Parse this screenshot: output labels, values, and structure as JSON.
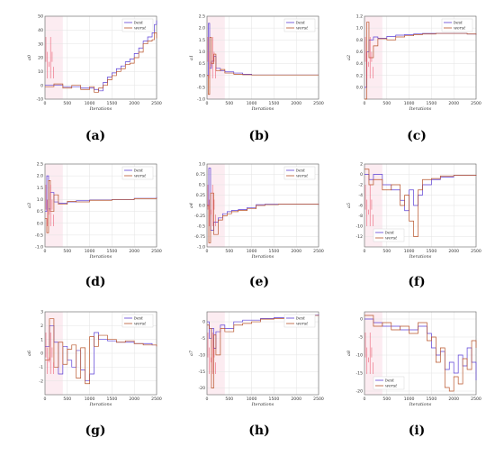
{
  "figure": {
    "panel_labels": [
      "(a)",
      "(b)",
      "(c)",
      "(d)",
      "(e)",
      "(f)",
      "(g)",
      "(h)",
      "(i)"
    ]
  },
  "colors": {
    "best": "#5b3fd6",
    "worst": "#b8542a",
    "spike": "#e8405a",
    "band": "#f6c9d6",
    "grid": "#e3e3e3"
  },
  "chart_data": [
    {
      "type": "line",
      "panel": "(a)",
      "xlabel": "Iterations",
      "ylabel": "a0",
      "xlim": [
        0,
        2500
      ],
      "ylim": [
        -10,
        50
      ],
      "xticks": [
        0,
        500,
        1000,
        1500,
        2000,
        2500
      ],
      "yticks": [
        -10,
        0,
        10,
        20,
        30,
        40,
        50
      ],
      "series": [
        {
          "name": "best",
          "x": [
            0,
            200,
            400,
            600,
            800,
            1000,
            1100,
            1200,
            1300,
            1400,
            1500,
            1600,
            1700,
            1800,
            1900,
            2000,
            2100,
            2200,
            2300,
            2400,
            2450,
            2500
          ],
          "y": [
            0,
            0,
            -1,
            -1,
            -2,
            -2,
            -3,
            -4,
            2,
            6,
            9,
            12,
            14,
            17,
            19,
            23,
            27,
            32,
            35,
            38,
            44,
            47
          ]
        },
        {
          "name": "worst",
          "x": [
            0,
            200,
            400,
            600,
            800,
            1000,
            1100,
            1200,
            1300,
            1400,
            1500,
            1600,
            1700,
            1800,
            1900,
            2000,
            2100,
            2200,
            2300,
            2400,
            2450,
            2500
          ],
          "y": [
            -1,
            1,
            -2,
            0,
            -3,
            -1,
            -5,
            -2,
            0,
            4,
            7,
            10,
            12,
            15,
            16,
            20,
            24,
            30,
            32,
            33,
            38,
            34
          ]
        }
      ]
    },
    {
      "type": "line",
      "panel": "(b)",
      "xlabel": "Iterations",
      "ylabel": "a1",
      "xlim": [
        0,
        2500
      ],
      "ylim": [
        -1.0,
        2.5
      ],
      "xticks": [
        0,
        500,
        1000,
        1500,
        2000,
        2500
      ],
      "yticks": [
        -1.0,
        -0.5,
        0.0,
        0.5,
        1.0,
        1.5,
        2.0,
        2.5
      ],
      "series": [
        {
          "name": "best",
          "x": [
            0,
            30,
            60,
            100,
            150,
            200,
            300,
            400,
            600,
            800,
            1000,
            1500,
            2000,
            2500
          ],
          "y": [
            0.0,
            2.2,
            0.3,
            0.6,
            0.8,
            0.3,
            0.2,
            0.15,
            0.1,
            0.05,
            0.02,
            0.02,
            0.02,
            0.02
          ]
        },
        {
          "name": "worst",
          "x": [
            0,
            30,
            60,
            100,
            150,
            200,
            300,
            400,
            600,
            800,
            1000,
            1500,
            2000,
            2500
          ],
          "y": [
            0.0,
            -0.8,
            1.6,
            0.5,
            0.9,
            0.2,
            0.25,
            0.1,
            0.05,
            0.03,
            0.02,
            0.02,
            0.02,
            0.02
          ]
        }
      ]
    },
    {
      "type": "line",
      "panel": "(c)",
      "xlabel": "Iterations",
      "ylabel": "a2",
      "xlim": [
        0,
        2500
      ],
      "ylim": [
        -0.2,
        1.2
      ],
      "xticks": [
        0,
        500,
        1000,
        1500,
        2000,
        2500
      ],
      "yticks": [
        0.0,
        0.2,
        0.4,
        0.6,
        0.8,
        1.0,
        1.2
      ],
      "series": [
        {
          "name": "best",
          "x": [
            0,
            50,
            100,
            200,
            300,
            500,
            700,
            900,
            1100,
            1300,
            1600,
            2000,
            2300,
            2500
          ],
          "y": [
            0.0,
            0.6,
            0.8,
            0.85,
            0.83,
            0.86,
            0.88,
            0.89,
            0.9,
            0.91,
            0.91,
            0.91,
            0.9,
            0.89
          ]
        },
        {
          "name": "worst",
          "x": [
            0,
            50,
            100,
            200,
            300,
            500,
            700,
            900,
            1100,
            1300,
            1600,
            2000,
            2300,
            2500
          ],
          "y": [
            -0.2,
            1.1,
            0.5,
            0.7,
            0.82,
            0.8,
            0.85,
            0.87,
            0.89,
            0.9,
            0.91,
            0.91,
            0.9,
            0.89
          ]
        }
      ]
    },
    {
      "type": "line",
      "panel": "(d)",
      "xlabel": "Iterations",
      "ylabel": "a3",
      "xlim": [
        0,
        2500
      ],
      "ylim": [
        -1.0,
        2.5
      ],
      "xticks": [
        0,
        500,
        1000,
        1500,
        2000,
        2500
      ],
      "yticks": [
        -1.0,
        -0.5,
        0.0,
        0.5,
        1.0,
        1.5,
        2.0,
        2.5
      ],
      "series": [
        {
          "name": "best",
          "x": [
            0,
            40,
            80,
            120,
            200,
            300,
            500,
            700,
            1000,
            1500,
            2000,
            2500
          ],
          "y": [
            0.5,
            2.0,
            0.6,
            1.3,
            0.9,
            0.85,
            0.9,
            0.95,
            0.98,
            1.0,
            1.05,
            1.1
          ]
        },
        {
          "name": "worst",
          "x": [
            0,
            40,
            80,
            120,
            200,
            300,
            500,
            700,
            1000,
            1500,
            2000,
            2500
          ],
          "y": [
            0.2,
            -0.4,
            1.8,
            0.5,
            1.2,
            0.8,
            0.92,
            0.9,
            0.97,
            1.0,
            1.04,
            1.08
          ]
        }
      ]
    },
    {
      "type": "line",
      "panel": "(e)",
      "xlabel": "Iterations",
      "ylabel": "a4",
      "xlim": [
        0,
        2500
      ],
      "ylim": [
        -1.0,
        1.0
      ],
      "xticks": [
        0,
        500,
        1000,
        1500,
        2000,
        2500
      ],
      "yticks": [
        -1.0,
        -0.75,
        -0.5,
        -0.25,
        0.0,
        0.25,
        0.5,
        0.75,
        1.0
      ],
      "series": [
        {
          "name": "best",
          "x": [
            0,
            40,
            80,
            150,
            250,
            350,
            450,
            550,
            700,
            900,
            1100,
            1300,
            1600,
            2000,
            2500
          ],
          "y": [
            0.0,
            0.9,
            -0.6,
            -0.4,
            -0.3,
            -0.2,
            -0.15,
            -0.12,
            -0.1,
            -0.05,
            0.02,
            0.03,
            0.03,
            0.03,
            0.02
          ]
        },
        {
          "name": "worst",
          "x": [
            0,
            40,
            80,
            150,
            250,
            350,
            450,
            550,
            700,
            900,
            1100,
            1300,
            1600,
            2000,
            2500
          ],
          "y": [
            0.0,
            -0.9,
            0.3,
            -0.7,
            -0.35,
            -0.25,
            -0.2,
            -0.15,
            -0.12,
            -0.08,
            0.0,
            0.02,
            0.03,
            0.03,
            0.02
          ]
        }
      ]
    },
    {
      "type": "line",
      "panel": "(f)",
      "xlabel": "Iterations",
      "ylabel": "a5",
      "xlim": [
        0,
        2500
      ],
      "ylim": [
        -14,
        2
      ],
      "xticks": [
        0,
        500,
        1000,
        1500,
        2000,
        2500
      ],
      "yticks": [
        -12,
        -10,
        -8,
        -6,
        -4,
        -2,
        0,
        2
      ],
      "series": [
        {
          "name": "best",
          "x": [
            0,
            100,
            200,
            400,
            600,
            800,
            900,
            1000,
            1100,
            1200,
            1300,
            1500,
            1700,
            2000,
            2500
          ],
          "y": [
            0,
            -1,
            0,
            -2,
            -3,
            -5,
            -7,
            -3,
            -6,
            -4,
            -2,
            -1,
            -0.5,
            -0.2,
            -0.1
          ]
        },
        {
          "name": "worst",
          "x": [
            0,
            100,
            200,
            400,
            600,
            800,
            900,
            1000,
            1100,
            1200,
            1300,
            1500,
            1700,
            2000,
            2500
          ],
          "y": [
            1,
            -2,
            -1,
            -3,
            -2,
            -6,
            -4,
            -9,
            -12,
            -3,
            -1,
            -0.8,
            -0.3,
            -0.2,
            -0.1
          ]
        }
      ]
    },
    {
      "type": "line",
      "panel": "(g)",
      "xlabel": "Iterations",
      "ylabel": "a6",
      "xlim": [
        0,
        2500
      ],
      "ylim": [
        -3,
        3
      ],
      "xticks": [
        0,
        500,
        1000,
        1500,
        2000,
        2500
      ],
      "yticks": [
        -2,
        -1,
        0,
        1,
        2,
        3
      ],
      "series": [
        {
          "name": "best",
          "x": [
            0,
            100,
            200,
            300,
            400,
            500,
            600,
            700,
            800,
            900,
            1000,
            1100,
            1200,
            1400,
            1600,
            1800,
            2000,
            2200,
            2400,
            2500
          ],
          "y": [
            0.5,
            2.0,
            0.8,
            -1.5,
            0.5,
            -0.5,
            -1.0,
            0.2,
            -1.2,
            -2.0,
            -1.5,
            1.5,
            1.0,
            0.9,
            0.8,
            0.8,
            0.7,
            0.7,
            0.6,
            0.6
          ]
        },
        {
          "name": "worst",
          "x": [
            0,
            100,
            200,
            300,
            400,
            500,
            600,
            700,
            800,
            900,
            1000,
            1100,
            1200,
            1400,
            1600,
            1800,
            2000,
            2200,
            2400,
            2500
          ],
          "y": [
            -0.5,
            2.5,
            -1.0,
            0.8,
            -0.8,
            0.3,
            0.6,
            -1.8,
            0.4,
            -2.2,
            1.2,
            0.5,
            1.3,
            1.0,
            0.8,
            0.9,
            0.7,
            0.6,
            0.6,
            0.5
          ]
        }
      ]
    },
    {
      "type": "line",
      "panel": "(h)",
      "xlabel": "Iterations",
      "ylabel": "a7",
      "xlim": [
        0,
        2500
      ],
      "ylim": [
        -22,
        3
      ],
      "xticks": [
        0,
        500,
        1000,
        1500,
        2000,
        2500
      ],
      "yticks": [
        -20,
        -15,
        -10,
        -5,
        0
      ],
      "series": [
        {
          "name": "best",
          "x": [
            0,
            50,
            100,
            150,
            200,
            300,
            400,
            600,
            800,
            1000,
            1200,
            1500,
            1800,
            2100,
            2400,
            2500
          ],
          "y": [
            0,
            -5,
            -2,
            -8,
            -3,
            -1,
            -2,
            0,
            0.5,
            0.5,
            1,
            1.2,
            1.5,
            1.8,
            2,
            2.2
          ]
        },
        {
          "name": "worst",
          "x": [
            0,
            50,
            100,
            150,
            200,
            300,
            400,
            600,
            800,
            1000,
            1200,
            1500,
            1800,
            2100,
            2400,
            2500
          ],
          "y": [
            -1,
            -2,
            -20,
            -4,
            -10,
            -2,
            -3,
            -1,
            -0.5,
            0,
            0.8,
            1,
            1.3,
            1.6,
            1.9,
            2
          ]
        }
      ]
    },
    {
      "type": "line",
      "panel": "(i)",
      "xlabel": "Iterations",
      "ylabel": "a8",
      "xlim": [
        0,
        2500
      ],
      "ylim": [
        -21,
        2
      ],
      "xticks": [
        0,
        500,
        1000,
        1500,
        2000,
        2500
      ],
      "yticks": [
        -20,
        -15,
        -10,
        -5,
        0
      ],
      "series": [
        {
          "name": "best",
          "x": [
            0,
            200,
            400,
            600,
            800,
            1000,
            1200,
            1400,
            1500,
            1600,
            1700,
            1800,
            1900,
            2000,
            2100,
            2200,
            2300,
            2400,
            2500
          ],
          "y": [
            0,
            -1,
            -2,
            -2,
            -3,
            -3,
            -2,
            -4,
            -8,
            -10,
            -9,
            -14,
            -12,
            -15,
            -10,
            -13,
            -8,
            -12,
            -17
          ]
        },
        {
          "name": "worst",
          "x": [
            0,
            200,
            400,
            600,
            800,
            1000,
            1200,
            1400,
            1500,
            1600,
            1700,
            1800,
            1900,
            2000,
            2100,
            2200,
            2300,
            2400,
            2500
          ],
          "y": [
            1,
            -2,
            -1,
            -3,
            -2,
            -4,
            -1,
            -6,
            -5,
            -12,
            -8,
            -19,
            -20,
            -16,
            -18,
            -11,
            -14,
            -6,
            -8
          ]
        }
      ]
    }
  ]
}
